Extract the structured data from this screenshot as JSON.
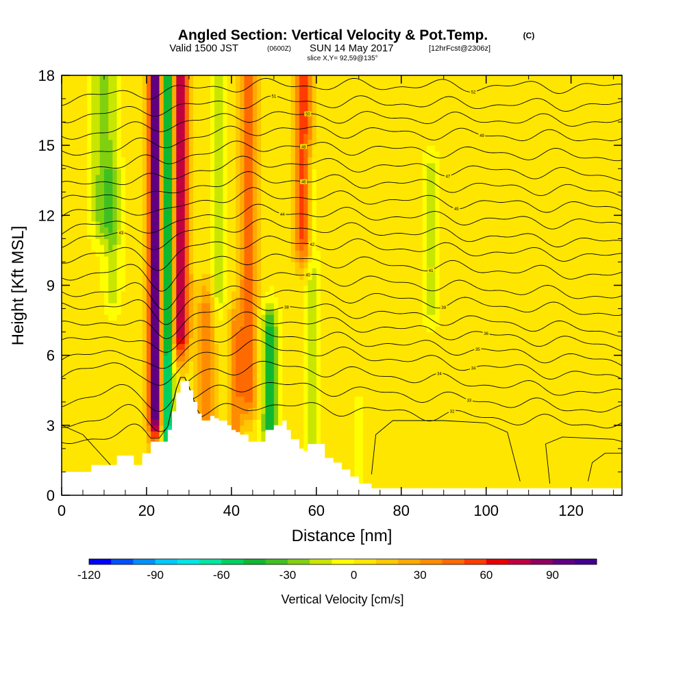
{
  "chart_data": {
    "type": "contour",
    "title_main": "Angled Section: Vertical Velocity & Pot.Temp.",
    "title_units": "(C)",
    "valid_prefix": "Valid 1500 JST",
    "valid_utc": "(0600Z)",
    "valid_date": "SUN 14 May 2017",
    "forecast": "[12hrFcst@2306z]",
    "slice": "slice X,Y= 92,59@135°",
    "xlabel": "Distance [nm]",
    "ylabel": "Height [Kft MSL]",
    "xlim": [
      0,
      132
    ],
    "ylim": [
      0,
      18
    ],
    "x_ticks": [
      0,
      20,
      40,
      60,
      80,
      100,
      120
    ],
    "y_ticks": [
      0,
      3,
      6,
      9,
      12,
      15,
      18
    ],
    "colorbar": {
      "label": "Vertical Velocity [cm/s]",
      "min": -120,
      "max": 110,
      "step": 10,
      "tick_values": [
        -120,
        -90,
        -60,
        -30,
        0,
        30,
        60,
        90
      ],
      "colors": [
        "#0000ff",
        "#0050ff",
        "#0090ff",
        "#00c8ff",
        "#00e6e6",
        "#00e6a0",
        "#00d060",
        "#10b830",
        "#40c020",
        "#80d010",
        "#c8e600",
        "#ffff00",
        "#ffe600",
        "#ffc800",
        "#ffaa00",
        "#ff8c00",
        "#ff6a00",
        "#ff3c00",
        "#e80000",
        "#c00040",
        "#900060",
        "#600080",
        "#400090"
      ]
    },
    "terrain": [
      [
        0,
        1
      ],
      [
        5,
        1
      ],
      [
        7,
        1.3
      ],
      [
        10,
        1.3
      ],
      [
        13,
        1.7
      ],
      [
        15,
        1.7
      ],
      [
        17,
        1.3
      ],
      [
        19,
        1.8
      ],
      [
        21,
        2.3
      ],
      [
        23,
        2.3
      ],
      [
        25,
        2.8
      ],
      [
        26,
        3.6
      ],
      [
        27,
        4.4
      ],
      [
        28,
        4.9
      ],
      [
        29,
        4.9
      ],
      [
        30,
        4.5
      ],
      [
        31,
        4
      ],
      [
        32,
        3.5
      ],
      [
        33,
        3.2
      ],
      [
        34,
        3.2
      ],
      [
        35,
        3.4
      ],
      [
        36,
        3.3
      ],
      [
        37,
        3.2
      ],
      [
        38,
        3.2
      ],
      [
        39,
        3
      ],
      [
        40,
        2.8
      ],
      [
        41,
        2.7
      ],
      [
        42,
        2.6
      ],
      [
        44,
        2.3
      ],
      [
        46,
        2.3
      ],
      [
        48,
        2.8
      ],
      [
        50,
        3
      ],
      [
        52,
        3.2
      ],
      [
        53,
        2.8
      ],
      [
        54,
        2.4
      ],
      [
        56,
        2
      ],
      [
        57,
        1.9
      ],
      [
        58,
        2.2
      ],
      [
        60,
        2.2
      ],
      [
        62,
        1.6
      ],
      [
        64,
        1.4
      ],
      [
        66,
        1.1
      ],
      [
        68,
        0.8
      ],
      [
        70,
        0.5
      ],
      [
        73,
        0.3
      ],
      [
        132,
        0.3
      ]
    ],
    "updraft_bands": [
      {
        "x": 22,
        "half_width": 1.6,
        "peak": 100,
        "y_from": 3.5,
        "y_to": 18
      },
      {
        "x": 28,
        "half_width": 2.0,
        "peak": 75,
        "y_from": 7,
        "y_to": 18
      },
      {
        "x": 44,
        "half_width": 2.0,
        "peak": 45,
        "y_from": 4.5,
        "y_to": 18
      },
      {
        "x": 57,
        "half_width": 2.2,
        "peak": 50,
        "y_from": 11,
        "y_to": 18
      },
      {
        "x": 34,
        "half_width": 2.0,
        "peak": 30,
        "y_from": 3.5,
        "y_to": 8
      },
      {
        "x": 41,
        "half_width": 1.5,
        "peak": 30,
        "y_from": 3,
        "y_to": 7
      }
    ],
    "downdraft_bands": [
      {
        "x": 10,
        "half_width": 3.0,
        "peak": -30,
        "y_from": 12,
        "y_to": 18
      },
      {
        "x": 12,
        "half_width": 2.0,
        "peak": -20,
        "y_from": 9,
        "y_to": 13
      },
      {
        "x": 25,
        "half_width": 1.3,
        "peak": -75,
        "y_from": 2.5,
        "y_to": 18
      },
      {
        "x": 37,
        "half_width": 1.4,
        "peak": -25,
        "y_from": 9,
        "y_to": 18
      },
      {
        "x": 49,
        "half_width": 1.8,
        "peak": -50,
        "y_from": 3,
        "y_to": 7
      },
      {
        "x": 59,
        "half_width": 1.5,
        "peak": -20,
        "y_from": 2.5,
        "y_to": 14
      },
      {
        "x": 87,
        "half_width": 1.6,
        "peak": -25,
        "y_from": 8.5,
        "y_to": 13.5
      },
      {
        "x": 70,
        "half_width": 1.2,
        "peak": -15,
        "y_from": 0.5,
        "y_to": 3
      }
    ],
    "isentropes": [
      {
        "y0": 2.2,
        "y1": 3.9,
        "y2": 3.0,
        "label": "32",
        "lx": 92,
        "ly": 3.7
      },
      {
        "y0": 3.0,
        "y1": 4.8,
        "y2": 3.6,
        "label": "33",
        "lx": 96,
        "ly": 4.6
      },
      {
        "y0": 4.0,
        "y1": 5.6,
        "y2": 4.3,
        "label": "34",
        "lx": 89,
        "ly": 5.0
      },
      {
        "y0": 5.2,
        "y1": 6.4,
        "y2": 5.0,
        "label": "34",
        "lx": 97,
        "ly": 5.9
      },
      {
        "y0": 5.8,
        "y1": 7.0,
        "y2": 5.7,
        "label": "35",
        "lx": 98,
        "ly": 6.7
      },
      {
        "y0": 6.5,
        "y1": 7.6,
        "y2": 6.4,
        "label": "36",
        "lx": 100,
        "ly": 7.3
      },
      {
        "y0": 7.2,
        "y1": 8.2,
        "y2": 7.0,
        "label": "38",
        "lx": 53,
        "ly": 7.7
      },
      {
        "y0": 8.0,
        "y1": 8.8,
        "y2": 7.8,
        "label": "39",
        "lx": 90,
        "ly": 8.8
      },
      {
        "y0": 8.6,
        "y1": 9.5,
        "y2": 8.5,
        "label": "40",
        "lx": 58,
        "ly": 8.5
      },
      {
        "y0": 9.4,
        "y1": 10.2,
        "y2": 9.4,
        "label": "41",
        "lx": 87,
        "ly": 10.5
      },
      {
        "y0": 10.2,
        "y1": 10.9,
        "y2": 10.2,
        "label": "42",
        "lx": 59,
        "ly": 10.8
      },
      {
        "y0": 10.9,
        "y1": 11.6,
        "y2": 10.8,
        "label": "43",
        "lx": 14,
        "ly": 10.0
      },
      {
        "y0": 11.4,
        "y1": 12.2,
        "y2": 11.6,
        "label": "44",
        "lx": 52,
        "ly": 11.8
      },
      {
        "y0": 12.0,
        "y1": 12.9,
        "y2": 12.3,
        "label": "45",
        "lx": 93,
        "ly": 12.0
      },
      {
        "y0": 12.6,
        "y1": 13.6,
        "y2": 13.0,
        "label": "46",
        "lx": 57,
        "ly": 12.7
      },
      {
        "y0": 13.2,
        "y1": 14.3,
        "y2": 13.7,
        "label": "47",
        "lx": 91,
        "ly": 13.7
      },
      {
        "y0": 13.9,
        "y1": 15.0,
        "y2": 14.5,
        "label": "48",
        "lx": 57,
        "ly": 13.8
      },
      {
        "y0": 14.6,
        "y1": 15.7,
        "y2": 15.3,
        "label": "49",
        "lx": 99,
        "ly": 15.6
      },
      {
        "y0": 15.4,
        "y1": 16.3,
        "y2": 16.0,
        "label": "50",
        "lx": 58,
        "ly": 15.1
      },
      {
        "y0": 16.2,
        "y1": 16.9,
        "y2": 16.7,
        "label": "51",
        "lx": 50,
        "ly": 16.6
      },
      {
        "y0": 17.0,
        "y1": 17.6,
        "y2": 17.5,
        "label": "52",
        "lx": 97,
        "ly": 17.5
      }
    ],
    "low_contours": [
      {
        "points": [
          [
            0,
            3.0
          ],
          [
            5,
            2.6
          ],
          [
            10,
            1.6
          ],
          [
            13,
            1.0
          ]
        ]
      },
      {
        "points": [
          [
            73,
            0.9
          ],
          [
            74,
            2.6
          ],
          [
            78,
            3.2
          ],
          [
            90,
            3.2
          ],
          [
            100,
            3.1
          ],
          [
            105,
            2.7
          ],
          [
            107,
            1.3
          ],
          [
            108,
            0.6
          ]
        ]
      },
      {
        "points": [
          [
            115,
            0.5
          ],
          [
            114,
            2.2
          ],
          [
            118,
            2.5
          ],
          [
            130,
            2.4
          ],
          [
            132,
            2.3
          ]
        ]
      },
      {
        "points": [
          [
            124,
            0.6
          ],
          [
            125,
            1.4
          ],
          [
            128,
            1.8
          ],
          [
            132,
            1.8
          ]
        ]
      }
    ]
  }
}
